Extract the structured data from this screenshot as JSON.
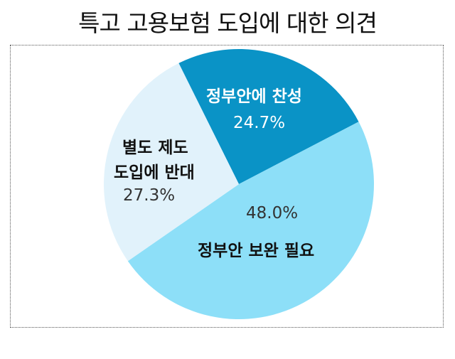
{
  "title": "특고 고용보험 도입에 대한 의견",
  "chart_data": {
    "type": "pie",
    "title": "특고 고용보험 도입에 대한 의견",
    "categories": [
      "정부안에 찬성",
      "정부안 보완 필요",
      "별도 제도 도입에 반대"
    ],
    "values": [
      24.7,
      48.0,
      27.3
    ],
    "colors": [
      "#0a93c6",
      "#8ddff8",
      "#e1f2fb"
    ],
    "labels": [
      {
        "name": "정부안에 찬성",
        "pct": "24.7%"
      },
      {
        "name": "정부안 보완 필요",
        "pct": "48.0%"
      },
      {
        "name_line1": "별도 제도",
        "name_line2": "도입에 반대",
        "pct": "27.3%"
      }
    ],
    "legend": "none"
  }
}
